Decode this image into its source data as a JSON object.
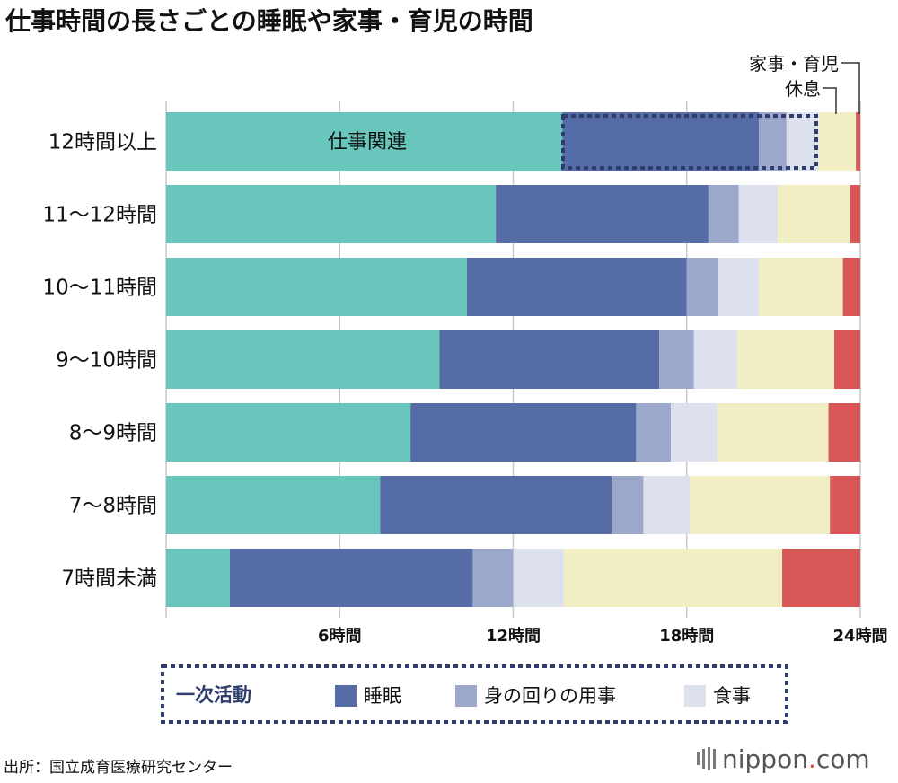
{
  "colors": {
    "work": "#68c6bc",
    "sleep": "#566ca6",
    "personal_care": "#9ba7cb",
    "meals": "#dde1ee",
    "housework": "#f2eec4",
    "rest": "#d95656",
    "dashed": "#2e3d6b",
    "gridline": "#c9c9c9",
    "brand_accent": "#e8433a"
  },
  "chart_data": {
    "type": "bar",
    "orientation": "horizontal",
    "stacked": true,
    "title": "仕事時間の長さごとの睡眠や家事・育児の時間",
    "categories": [
      "12時間以上",
      "11〜12時間",
      "10〜11時間",
      "9〜10時間",
      "8〜9時間",
      "7〜8時間",
      "7時間未満"
    ],
    "xlim": [
      0,
      24
    ],
    "xticks": [
      6,
      12,
      18,
      24
    ],
    "xtick_labels": [
      "6時間",
      "12時間",
      "18時間",
      "24時間"
    ],
    "grid": true,
    "series": [
      {
        "name": "仕事関連",
        "key": "work",
        "values": [
          13.7,
          11.4,
          10.4,
          9.45,
          8.45,
          7.4,
          2.2
        ]
      },
      {
        "name": "睡眠",
        "key": "sleep",
        "values": [
          6.8,
          7.35,
          7.6,
          7.6,
          7.8,
          8.0,
          8.4
        ]
      },
      {
        "name": "身の回りの用事",
        "key": "personal_care",
        "values": [
          0.95,
          1.05,
          1.1,
          1.2,
          1.2,
          1.1,
          1.4
        ]
      },
      {
        "name": "食事",
        "key": "meals",
        "values": [
          1.1,
          1.35,
          1.4,
          1.5,
          1.6,
          1.6,
          1.75
        ]
      },
      {
        "name": "家事・育児",
        "key": "housework",
        "values": [
          1.3,
          2.5,
          2.9,
          3.35,
          3.85,
          4.85,
          7.55
        ]
      },
      {
        "name": "休息",
        "key": "rest",
        "values": [
          0.15,
          0.35,
          0.6,
          0.9,
          1.1,
          1.05,
          2.7
        ]
      }
    ],
    "inbar_label": "仕事関連",
    "annotations": {
      "housework": "家事・育児",
      "rest": "休息"
    },
    "legend": {
      "placement": "bottom",
      "group_label": "一次活動",
      "items": [
        {
          "label": "睡眠",
          "key": "sleep"
        },
        {
          "label": "身の回りの用事",
          "key": "personal_care"
        },
        {
          "label": "食事",
          "key": "meals"
        }
      ]
    }
  },
  "footer": {
    "source": "出所：国立成育医療研究センター",
    "brand_name": "nippon",
    "brand_suffix": ".com"
  }
}
